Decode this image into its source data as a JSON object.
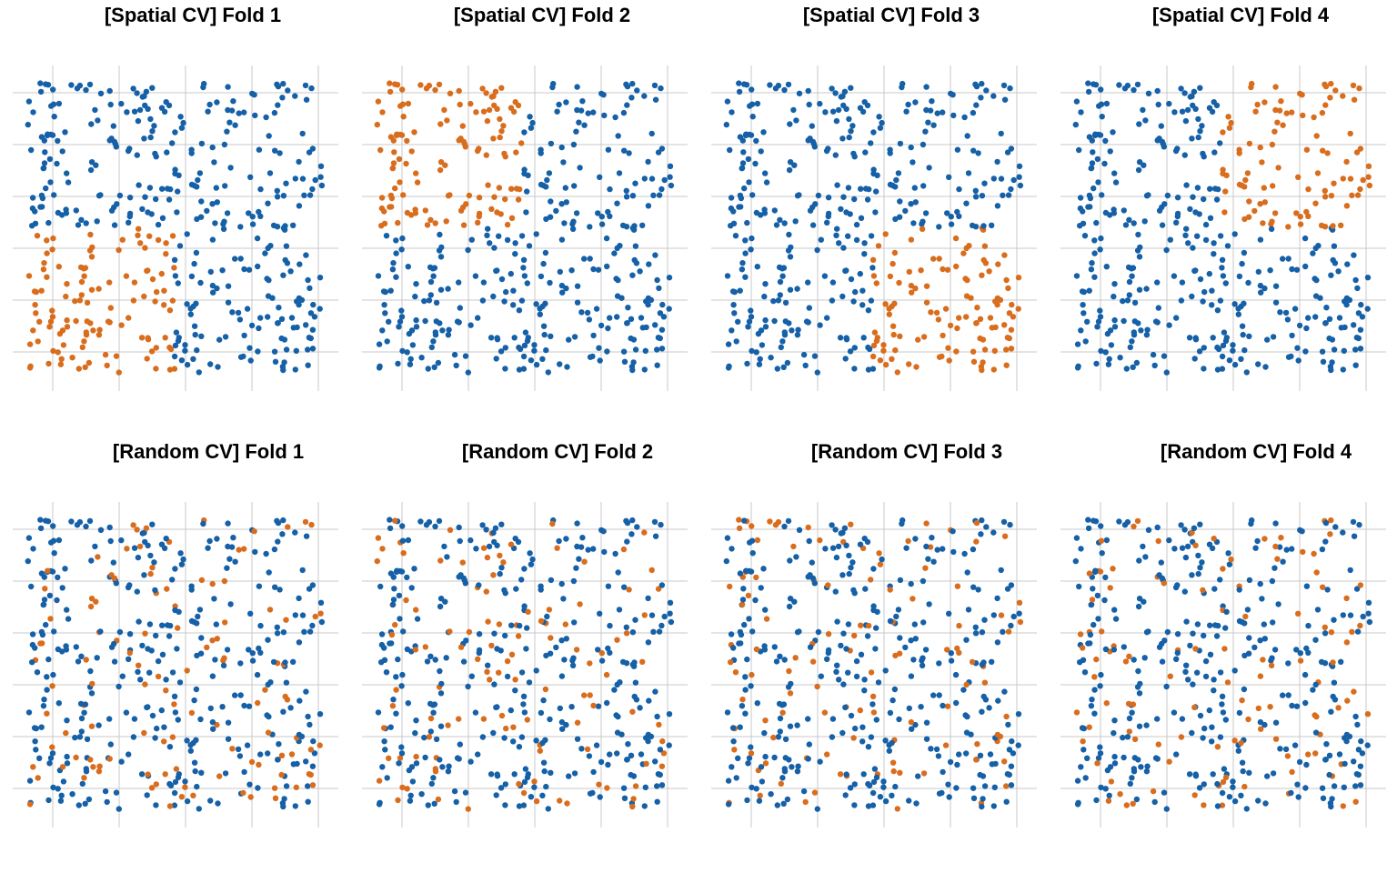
{
  "figure": {
    "colors": {
      "training": "#1560a6",
      "test": "#d96d1e",
      "grid": "#c9c9c9"
    },
    "point_count_per_panel": 450
  },
  "chart_data": [
    {
      "type": "scatter",
      "title": "[Spatial CV] Fold 1",
      "cv": "spatial",
      "fold": 1,
      "test_region": {
        "x": [
          0.0,
          0.5
        ],
        "y": [
          0.0,
          0.5
        ]
      },
      "xlim": [
        0,
        1
      ],
      "ylim": [
        0,
        1
      ],
      "grid": true,
      "legend": "none",
      "seed": 20240611
    },
    {
      "type": "scatter",
      "title": "[Spatial CV] Fold 2",
      "cv": "spatial",
      "fold": 2,
      "test_region": {
        "x": [
          0.0,
          0.5
        ],
        "y": [
          0.5,
          1.0
        ]
      },
      "xlim": [
        0,
        1
      ],
      "ylim": [
        0,
        1
      ],
      "grid": true,
      "legend": "none",
      "seed": 20240611
    },
    {
      "type": "scatter",
      "title": "[Spatial CV] Fold 3",
      "cv": "spatial",
      "fold": 3,
      "test_region": {
        "x": [
          0.5,
          1.0
        ],
        "y": [
          0.0,
          0.5
        ]
      },
      "xlim": [
        0,
        1
      ],
      "ylim": [
        0,
        1
      ],
      "grid": true,
      "legend": "none",
      "seed": 20240611
    },
    {
      "type": "scatter",
      "title": "[Spatial CV] Fold 4",
      "cv": "spatial",
      "fold": 4,
      "test_region": {
        "x": [
          0.5,
          1.0
        ],
        "y": [
          0.5,
          1.0
        ]
      },
      "xlim": [
        0,
        1
      ],
      "ylim": [
        0,
        1
      ],
      "grid": true,
      "legend": "none",
      "seed": 20240611
    },
    {
      "type": "scatter",
      "title": "[Random CV] Fold 1",
      "cv": "random",
      "fold": 1,
      "test_fraction": 0.25,
      "xlim": [
        0,
        1
      ],
      "ylim": [
        0,
        1
      ],
      "grid": true,
      "legend": "none",
      "seed": 20240611
    },
    {
      "type": "scatter",
      "title": "[Random CV] Fold 2",
      "cv": "random",
      "fold": 2,
      "test_fraction": 0.25,
      "xlim": [
        0,
        1
      ],
      "ylim": [
        0,
        1
      ],
      "grid": true,
      "legend": "none",
      "seed": 20240611
    },
    {
      "type": "scatter",
      "title": "[Random CV] Fold 3",
      "cv": "random",
      "fold": 3,
      "test_fraction": 0.25,
      "xlim": [
        0,
        1
      ],
      "ylim": [
        0,
        1
      ],
      "grid": true,
      "legend": "none",
      "seed": 20240611
    },
    {
      "type": "scatter",
      "title": "[Random CV] Fold 4",
      "cv": "random",
      "fold": 4,
      "test_fraction": 0.25,
      "xlim": [
        0,
        1
      ],
      "ylim": [
        0,
        1
      ],
      "grid": true,
      "legend": "none",
      "seed": 20240611
    }
  ]
}
